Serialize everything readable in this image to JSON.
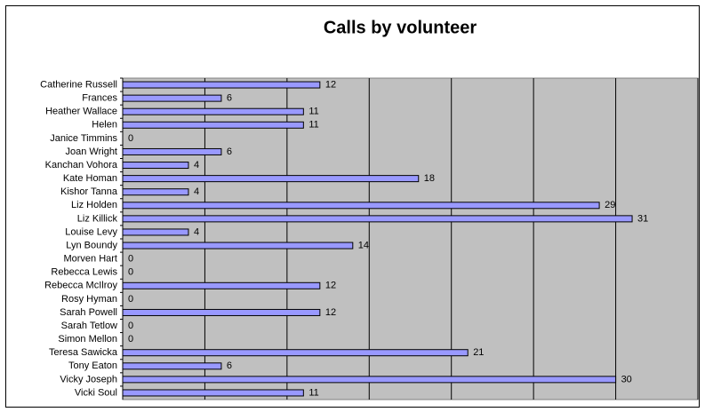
{
  "chart_data": {
    "type": "barh",
    "title": "Calls by volunteer",
    "categories": [
      "Catherine Russell",
      "Frances",
      "Heather Wallace",
      "Helen",
      "Janice Timmins",
      "Joan Wright",
      "Kanchan Vohora",
      "Kate Homan",
      "Kishor Tanna",
      "Liz Holden",
      "Liz Killick",
      "Louise Levy",
      "Lyn Boundy",
      "Morven Hart",
      "Rebecca Lewis",
      "Rebecca McIlroy",
      "Rosy Hyman",
      "Sarah Powell",
      "Sarah Tetlow",
      "Simon Mellon",
      "Teresa Sawicka",
      "Tony Eaton",
      "Vicky Joseph",
      "Vicki Soul"
    ],
    "values": [
      12,
      6,
      11,
      11,
      0,
      6,
      4,
      18,
      4,
      29,
      31,
      4,
      14,
      0,
      0,
      12,
      0,
      12,
      0,
      0,
      21,
      6,
      30,
      11
    ],
    "color": "#9999ff",
    "xlim": [
      0,
      35
    ],
    "xticks": [
      0,
      5,
      10,
      15,
      20,
      25,
      30,
      35
    ],
    "grid": true
  }
}
